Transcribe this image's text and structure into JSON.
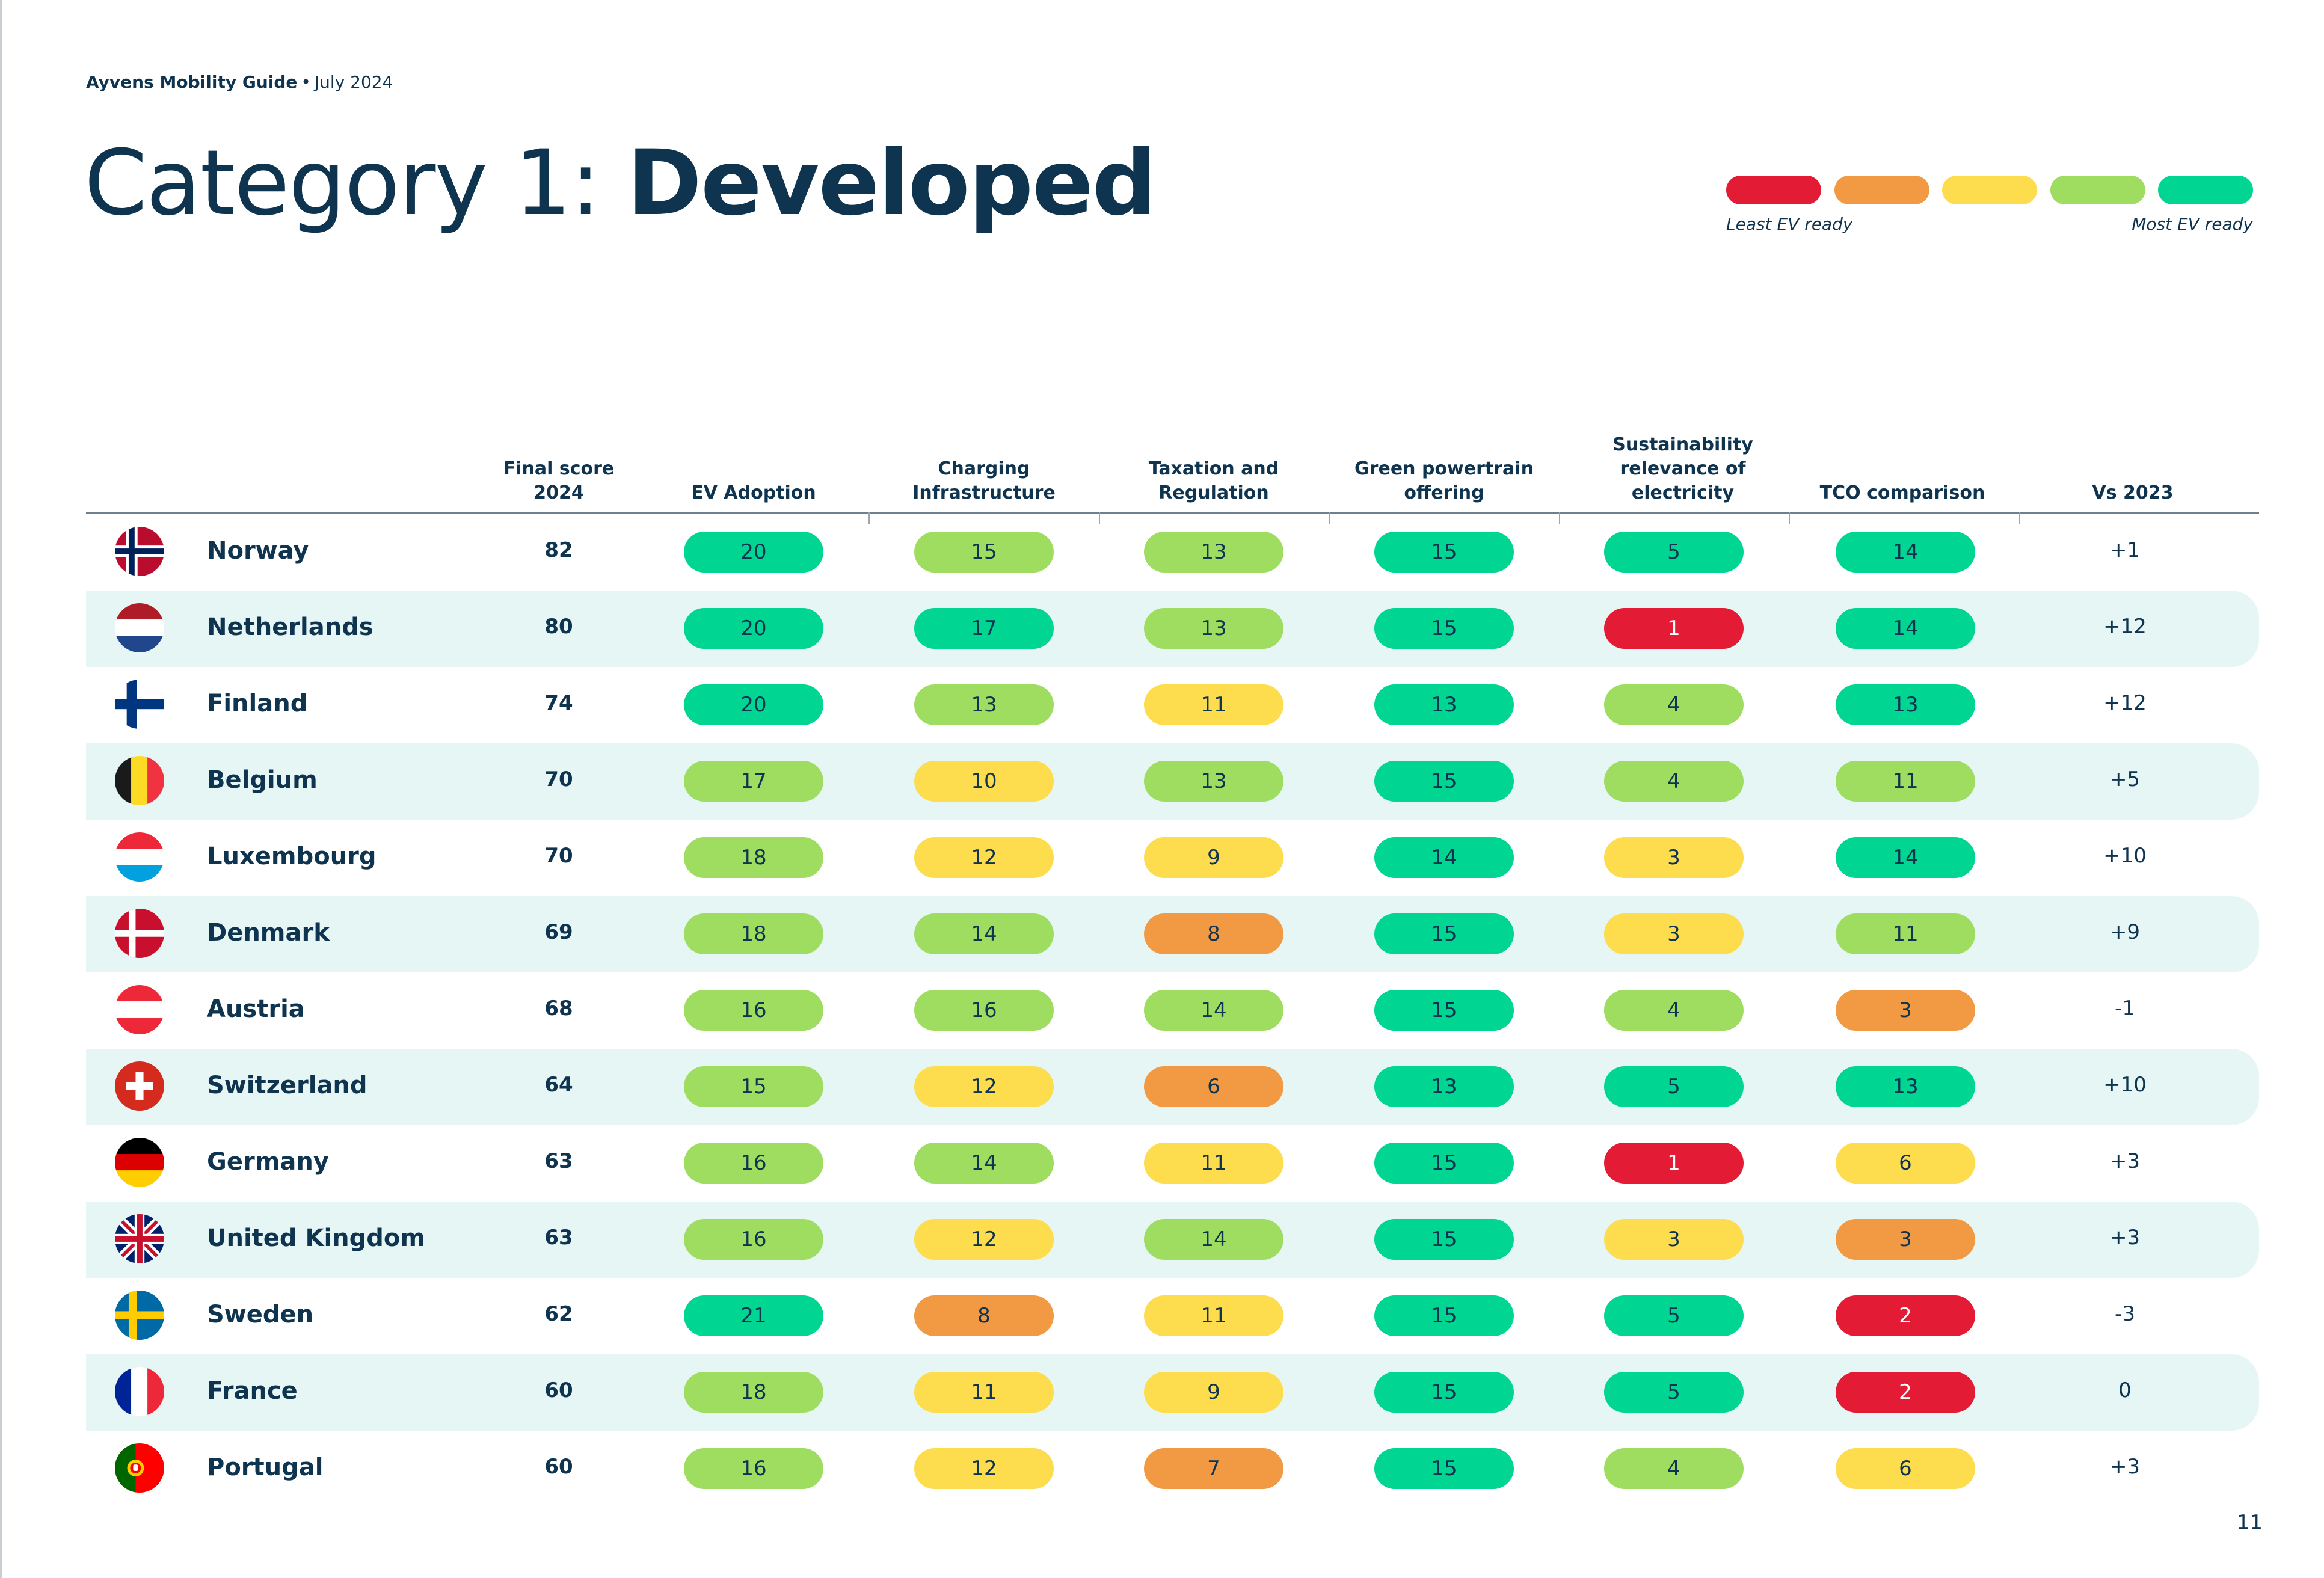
{
  "header": {
    "brand": "Ayvens Mobility Guide",
    "separator": "•",
    "date": "July 2024"
  },
  "title": {
    "prefix": "Category 1:",
    "main": "Developed"
  },
  "legend": {
    "least_label": "Least EV ready",
    "most_label": "Most EV ready",
    "colors": [
      "#e31b35",
      "#f29a43",
      "#fddc4d",
      "#9fdd61",
      "#00d691"
    ]
  },
  "colors": {
    "red": "#e31b35",
    "orange": "#f29a43",
    "yellow": "#fddc4d",
    "light_green": "#9fdd61",
    "green": "#00d691",
    "text": "#0f3450",
    "alt_row": "#e6f6f5"
  },
  "columns": [
    {
      "key": "final",
      "label": "Final score\n2024"
    },
    {
      "key": "ev_adoption",
      "label": "EV Adoption"
    },
    {
      "key": "charging",
      "label": "Charging\nInfrastructure"
    },
    {
      "key": "taxation",
      "label": "Taxation and\nRegulation"
    },
    {
      "key": "green",
      "label": "Green powertrain\noffering"
    },
    {
      "key": "sustainability",
      "label": "Sustainability\nrelevance of\nelectricity"
    },
    {
      "key": "tco",
      "label": "TCO comparison"
    },
    {
      "key": "vs",
      "label": "Vs 2023"
    }
  ],
  "rows": [
    {
      "country": "Norway",
      "flag": "norway-flag",
      "final": "82",
      "vs": "+1",
      "cells": [
        {
          "v": "20",
          "c": "green"
        },
        {
          "v": "15",
          "c": "light_green"
        },
        {
          "v": "13",
          "c": "light_green"
        },
        {
          "v": "15",
          "c": "green"
        },
        {
          "v": "5",
          "c": "green"
        },
        {
          "v": "14",
          "c": "green"
        }
      ]
    },
    {
      "country": "Netherlands",
      "flag": "netherlands-flag",
      "final": "80",
      "vs": "+12",
      "cells": [
        {
          "v": "20",
          "c": "green"
        },
        {
          "v": "17",
          "c": "green"
        },
        {
          "v": "13",
          "c": "light_green"
        },
        {
          "v": "15",
          "c": "green"
        },
        {
          "v": "1",
          "c": "red"
        },
        {
          "v": "14",
          "c": "green"
        }
      ]
    },
    {
      "country": "Finland",
      "flag": "finland-flag",
      "final": "74",
      "vs": "+12",
      "cells": [
        {
          "v": "20",
          "c": "green"
        },
        {
          "v": "13",
          "c": "light_green"
        },
        {
          "v": "11",
          "c": "yellow"
        },
        {
          "v": "13",
          "c": "green"
        },
        {
          "v": "4",
          "c": "light_green"
        },
        {
          "v": "13",
          "c": "green"
        }
      ]
    },
    {
      "country": "Belgium",
      "flag": "belgium-flag",
      "final": "70",
      "vs": "+5",
      "cells": [
        {
          "v": "17",
          "c": "light_green"
        },
        {
          "v": "10",
          "c": "yellow"
        },
        {
          "v": "13",
          "c": "light_green"
        },
        {
          "v": "15",
          "c": "green"
        },
        {
          "v": "4",
          "c": "light_green"
        },
        {
          "v": "11",
          "c": "light_green"
        }
      ]
    },
    {
      "country": "Luxembourg",
      "flag": "luxembourg-flag",
      "final": "70",
      "vs": "+10",
      "cells": [
        {
          "v": "18",
          "c": "light_green"
        },
        {
          "v": "12",
          "c": "yellow"
        },
        {
          "v": "9",
          "c": "yellow"
        },
        {
          "v": "14",
          "c": "green"
        },
        {
          "v": "3",
          "c": "yellow"
        },
        {
          "v": "14",
          "c": "green"
        }
      ]
    },
    {
      "country": "Denmark",
      "flag": "denmark-flag",
      "final": "69",
      "vs": "+9",
      "cells": [
        {
          "v": "18",
          "c": "light_green"
        },
        {
          "v": "14",
          "c": "light_green"
        },
        {
          "v": "8",
          "c": "orange"
        },
        {
          "v": "15",
          "c": "green"
        },
        {
          "v": "3",
          "c": "yellow"
        },
        {
          "v": "11",
          "c": "light_green"
        }
      ]
    },
    {
      "country": "Austria",
      "flag": "austria-flag",
      "final": "68",
      "vs": "-1",
      "cells": [
        {
          "v": "16",
          "c": "light_green"
        },
        {
          "v": "16",
          "c": "light_green"
        },
        {
          "v": "14",
          "c": "light_green"
        },
        {
          "v": "15",
          "c": "green"
        },
        {
          "v": "4",
          "c": "light_green"
        },
        {
          "v": "3",
          "c": "orange"
        }
      ]
    },
    {
      "country": "Switzerland",
      "flag": "switzerland-flag",
      "final": "64",
      "vs": "+10",
      "cells": [
        {
          "v": "15",
          "c": "light_green"
        },
        {
          "v": "12",
          "c": "yellow"
        },
        {
          "v": "6",
          "c": "orange"
        },
        {
          "v": "13",
          "c": "green"
        },
        {
          "v": "5",
          "c": "green"
        },
        {
          "v": "13",
          "c": "green"
        }
      ]
    },
    {
      "country": "Germany",
      "flag": "germany-flag",
      "final": "63",
      "vs": "+3",
      "cells": [
        {
          "v": "16",
          "c": "light_green"
        },
        {
          "v": "14",
          "c": "light_green"
        },
        {
          "v": "11",
          "c": "yellow"
        },
        {
          "v": "15",
          "c": "green"
        },
        {
          "v": "1",
          "c": "red"
        },
        {
          "v": "6",
          "c": "yellow"
        }
      ]
    },
    {
      "country": "United Kingdom",
      "flag": "united-kingdom-flag",
      "final": "63",
      "vs": "+3",
      "cells": [
        {
          "v": "16",
          "c": "light_green"
        },
        {
          "v": "12",
          "c": "yellow"
        },
        {
          "v": "14",
          "c": "light_green"
        },
        {
          "v": "15",
          "c": "green"
        },
        {
          "v": "3",
          "c": "yellow"
        },
        {
          "v": "3",
          "c": "orange"
        }
      ]
    },
    {
      "country": "Sweden",
      "flag": "sweden-flag",
      "final": "62",
      "vs": "-3",
      "cells": [
        {
          "v": "21",
          "c": "green"
        },
        {
          "v": "8",
          "c": "orange"
        },
        {
          "v": "11",
          "c": "yellow"
        },
        {
          "v": "15",
          "c": "green"
        },
        {
          "v": "5",
          "c": "green"
        },
        {
          "v": "2",
          "c": "red"
        }
      ]
    },
    {
      "country": "France",
      "flag": "france-flag",
      "final": "60",
      "vs": "0",
      "cells": [
        {
          "v": "18",
          "c": "light_green"
        },
        {
          "v": "11",
          "c": "yellow"
        },
        {
          "v": "9",
          "c": "yellow"
        },
        {
          "v": "15",
          "c": "green"
        },
        {
          "v": "5",
          "c": "green"
        },
        {
          "v": "2",
          "c": "red"
        }
      ]
    },
    {
      "country": "Portugal",
      "flag": "portugal-flag",
      "final": "60",
      "vs": "+3",
      "cells": [
        {
          "v": "16",
          "c": "light_green"
        },
        {
          "v": "12",
          "c": "yellow"
        },
        {
          "v": "7",
          "c": "orange"
        },
        {
          "v": "15",
          "c": "green"
        },
        {
          "v": "4",
          "c": "light_green"
        },
        {
          "v": "6",
          "c": "yellow"
        }
      ]
    }
  ],
  "page_number": "11"
}
